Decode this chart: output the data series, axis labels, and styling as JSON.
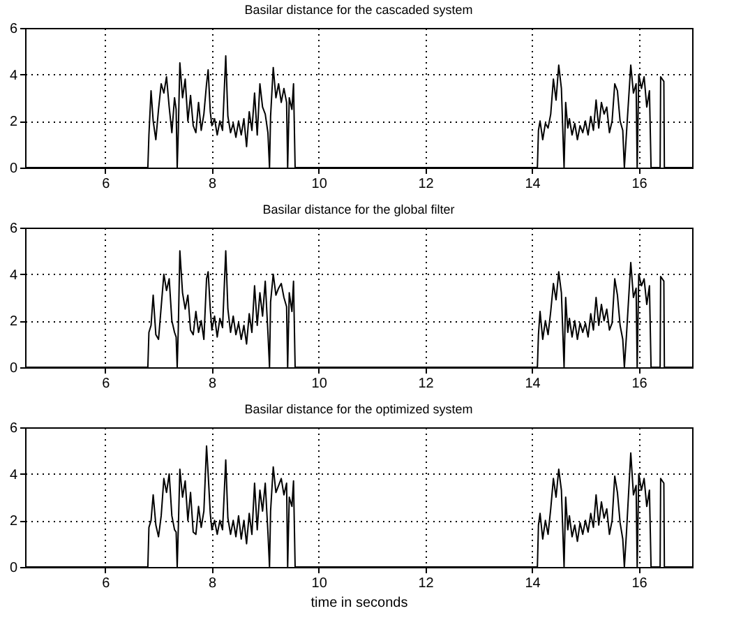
{
  "chart_data": [
    {
      "type": "line",
      "title": "Basilar distance for the cascaded system",
      "xlim": [
        4.5,
        17
      ],
      "ylim": [
        0,
        6
      ],
      "xticks": [
        6,
        8,
        10,
        12,
        14,
        16
      ],
      "yticks": [
        0,
        2,
        4,
        6
      ],
      "grid": true,
      "x": [
        4.5,
        6.8,
        6.82,
        6.86,
        6.9,
        6.95,
        7.0,
        7.05,
        7.1,
        7.15,
        7.2,
        7.25,
        7.3,
        7.33,
        7.35,
        7.37,
        7.4,
        7.45,
        7.5,
        7.55,
        7.6,
        7.65,
        7.7,
        7.75,
        7.8,
        7.85,
        7.9,
        7.93,
        7.97,
        8.0,
        8.05,
        8.1,
        8.15,
        8.2,
        8.26,
        8.3,
        8.35,
        8.4,
        8.45,
        8.5,
        8.55,
        8.6,
        8.65,
        8.7,
        8.75,
        8.8,
        8.85,
        8.9,
        8.95,
        9.0,
        9.05,
        9.08,
        9.1,
        9.15,
        9.2,
        9.25,
        9.3,
        9.35,
        9.4,
        9.42,
        9.45,
        9.5,
        9.53,
        9.56,
        14.1,
        14.12,
        14.15,
        14.2,
        14.25,
        14.3,
        14.35,
        14.4,
        14.45,
        14.5,
        14.55,
        14.6,
        14.63,
        14.67,
        14.7,
        14.75,
        14.8,
        14.85,
        14.9,
        14.95,
        15.0,
        15.05,
        15.1,
        15.15,
        15.2,
        15.25,
        15.3,
        15.35,
        15.4,
        15.45,
        15.5,
        15.55,
        15.6,
        15.65,
        15.7,
        15.73,
        15.77,
        15.85,
        15.9,
        15.95,
        15.97,
        16.0,
        16.05,
        16.1,
        16.15,
        16.2,
        16.23,
        16.4,
        16.41,
        16.47,
        16.48,
        17
      ],
      "values": [
        0,
        0,
        1.4,
        3.3,
        2.0,
        1.2,
        2.5,
        3.6,
        3.2,
        3.9,
        2.6,
        1.5,
        3.0,
        2.5,
        0,
        1.5,
        4.5,
        3.0,
        3.8,
        2.0,
        3.1,
        1.8,
        1.5,
        2.8,
        1.6,
        2.3,
        3.6,
        4.2,
        2.4,
        1.8,
        2.1,
        1.4,
        2.0,
        1.6,
        4.8,
        2.2,
        1.5,
        1.9,
        1.3,
        2.0,
        1.4,
        2.1,
        0.9,
        2.4,
        1.6,
        3.2,
        1.4,
        3.6,
        2.6,
        2.3,
        1.5,
        0,
        2.2,
        4.3,
        3.0,
        3.6,
        2.8,
        3.4,
        2.8,
        0,
        3.0,
        2.5,
        3.6,
        0,
        0,
        1.6,
        2.0,
        1.2,
        1.9,
        1.7,
        2.3,
        3.8,
        2.9,
        4.4,
        3.4,
        0,
        2.8,
        1.7,
        2.1,
        1.4,
        1.9,
        1.2,
        1.8,
        1.5,
        2.0,
        1.4,
        2.2,
        1.6,
        2.9,
        1.7,
        2.8,
        2.3,
        2.6,
        1.5,
        2.0,
        3.6,
        3.3,
        2.0,
        1.6,
        0,
        1.5,
        4.4,
        3.2,
        3.6,
        0,
        4.0,
        3.4,
        3.9,
        2.6,
        3.3,
        0,
        0,
        3.9,
        3.7,
        0,
        0
      ],
      "color": "#000000"
    },
    {
      "type": "line",
      "title": "Basilar distance for the global filter",
      "xlim": [
        4.5,
        17
      ],
      "ylim": [
        0,
        6
      ],
      "xticks": [
        6,
        8,
        10,
        12,
        14,
        16
      ],
      "yticks": [
        0,
        2,
        4,
        6
      ],
      "grid": true,
      "x": [
        4.5,
        6.8,
        6.82,
        6.86,
        6.9,
        6.95,
        7.0,
        7.05,
        7.1,
        7.15,
        7.2,
        7.25,
        7.3,
        7.33,
        7.35,
        7.37,
        7.4,
        7.45,
        7.5,
        7.55,
        7.6,
        7.65,
        7.7,
        7.75,
        7.8,
        7.85,
        7.9,
        7.93,
        7.97,
        8.0,
        8.05,
        8.1,
        8.15,
        8.2,
        8.26,
        8.3,
        8.35,
        8.4,
        8.45,
        8.5,
        8.55,
        8.6,
        8.65,
        8.7,
        8.75,
        8.8,
        8.85,
        8.9,
        8.95,
        9.0,
        9.05,
        9.08,
        9.1,
        9.15,
        9.2,
        9.25,
        9.3,
        9.35,
        9.4,
        9.42,
        9.45,
        9.5,
        9.53,
        9.56,
        14.1,
        14.12,
        14.15,
        14.2,
        14.25,
        14.3,
        14.35,
        14.4,
        14.45,
        14.5,
        14.55,
        14.6,
        14.63,
        14.67,
        14.7,
        14.75,
        14.8,
        14.85,
        14.9,
        14.95,
        15.0,
        15.05,
        15.1,
        15.15,
        15.2,
        15.25,
        15.3,
        15.35,
        15.4,
        15.45,
        15.5,
        15.55,
        15.6,
        15.65,
        15.7,
        15.73,
        15.77,
        15.85,
        15.9,
        15.95,
        15.97,
        16.0,
        16.05,
        16.1,
        16.15,
        16.2,
        16.23,
        16.4,
        16.41,
        16.47,
        16.48,
        17
      ],
      "values": [
        0,
        0,
        1.5,
        1.8,
        3.1,
        1.4,
        1.2,
        2.6,
        4.0,
        3.3,
        3.8,
        2.0,
        1.5,
        1.3,
        0,
        1.6,
        5.0,
        3.2,
        2.5,
        3.1,
        1.6,
        1.4,
        2.4,
        1.5,
        2.0,
        1.2,
        3.8,
        4.1,
        2.5,
        1.6,
        2.2,
        1.3,
        2.1,
        1.7,
        5.0,
        2.5,
        1.5,
        2.2,
        1.4,
        1.9,
        1.2,
        1.8,
        1.0,
        2.3,
        1.5,
        3.5,
        1.8,
        3.2,
        2.2,
        3.7,
        1.5,
        0,
        2.8,
        4.0,
        3.1,
        3.4,
        3.6,
        3.0,
        2.6,
        0,
        3.2,
        2.4,
        3.7,
        0,
        0,
        1.4,
        2.4,
        1.2,
        2.0,
        1.4,
        2.4,
        3.6,
        2.9,
        4.1,
        3.2,
        0,
        3.0,
        1.5,
        2.1,
        1.3,
        2.0,
        1.2,
        1.9,
        1.5,
        1.9,
        1.3,
        2.3,
        1.6,
        3.0,
        1.8,
        2.7,
        2.0,
        2.5,
        1.6,
        1.9,
        3.8,
        3.1,
        1.8,
        1.2,
        0,
        1.4,
        4.5,
        3.0,
        3.4,
        0,
        4.0,
        3.5,
        3.8,
        2.7,
        3.5,
        0,
        0,
        3.9,
        3.7,
        0,
        0
      ],
      "color": "#000000"
    },
    {
      "type": "line",
      "title": "Basilar distance for the optimized system",
      "xlabel": "time in seconds",
      "xlim": [
        4.5,
        17
      ],
      "ylim": [
        0,
        6
      ],
      "xticks": [
        6,
        8,
        10,
        12,
        14,
        16
      ],
      "yticks": [
        0,
        2,
        4,
        6
      ],
      "grid": true,
      "x": [
        4.5,
        6.8,
        6.82,
        6.86,
        6.9,
        6.95,
        7.0,
        7.05,
        7.1,
        7.15,
        7.2,
        7.25,
        7.3,
        7.33,
        7.35,
        7.37,
        7.4,
        7.45,
        7.5,
        7.55,
        7.6,
        7.65,
        7.7,
        7.75,
        7.8,
        7.85,
        7.9,
        7.93,
        7.97,
        8.0,
        8.05,
        8.1,
        8.15,
        8.2,
        8.26,
        8.3,
        8.35,
        8.4,
        8.45,
        8.5,
        8.55,
        8.6,
        8.65,
        8.7,
        8.75,
        8.8,
        8.85,
        8.9,
        8.95,
        9.0,
        9.05,
        9.08,
        9.1,
        9.15,
        9.2,
        9.25,
        9.3,
        9.35,
        9.4,
        9.42,
        9.45,
        9.5,
        9.53,
        9.56,
        14.1,
        14.12,
        14.15,
        14.2,
        14.25,
        14.3,
        14.35,
        14.4,
        14.45,
        14.5,
        14.55,
        14.6,
        14.63,
        14.67,
        14.7,
        14.75,
        14.8,
        14.85,
        14.9,
        14.95,
        15.0,
        15.05,
        15.1,
        15.15,
        15.2,
        15.25,
        15.3,
        15.35,
        15.4,
        15.45,
        15.5,
        15.55,
        15.6,
        15.65,
        15.7,
        15.73,
        15.77,
        15.85,
        15.9,
        15.95,
        15.97,
        16.0,
        16.05,
        16.1,
        16.15,
        16.2,
        16.23,
        16.4,
        16.41,
        16.47,
        16.48,
        17
      ],
      "values": [
        0,
        0,
        1.7,
        2.0,
        3.1,
        1.8,
        1.3,
        2.2,
        3.8,
        3.2,
        4.0,
        2.2,
        1.6,
        1.5,
        0,
        1.6,
        4.2,
        3.0,
        3.7,
        2.0,
        3.2,
        1.5,
        1.4,
        2.6,
        1.7,
        2.4,
        5.2,
        4.0,
        2.3,
        1.6,
        2.0,
        1.4,
        2.0,
        1.6,
        4.6,
        2.1,
        1.4,
        2.0,
        1.3,
        2.2,
        1.2,
        2.0,
        1.0,
        2.3,
        1.4,
        3.6,
        1.6,
        3.3,
        2.4,
        3.6,
        1.5,
        0,
        2.4,
        4.3,
        3.2,
        3.5,
        3.8,
        3.1,
        3.6,
        0,
        3.0,
        2.6,
        3.7,
        0,
        0,
        1.8,
        2.3,
        1.2,
        2.0,
        1.4,
        2.5,
        3.8,
        3.0,
        4.2,
        3.3,
        0,
        3.0,
        1.6,
        2.2,
        1.3,
        1.8,
        1.1,
        1.9,
        1.4,
        2.0,
        1.5,
        2.3,
        1.7,
        3.1,
        1.8,
        2.8,
        2.1,
        2.5,
        1.4,
        2.0,
        3.9,
        3.2,
        1.9,
        1.2,
        0,
        1.5,
        4.9,
        3.1,
        3.5,
        0,
        4.0,
        3.3,
        3.8,
        2.6,
        3.3,
        0,
        0,
        3.8,
        3.6,
        0,
        0
      ],
      "color": "#000000"
    }
  ]
}
